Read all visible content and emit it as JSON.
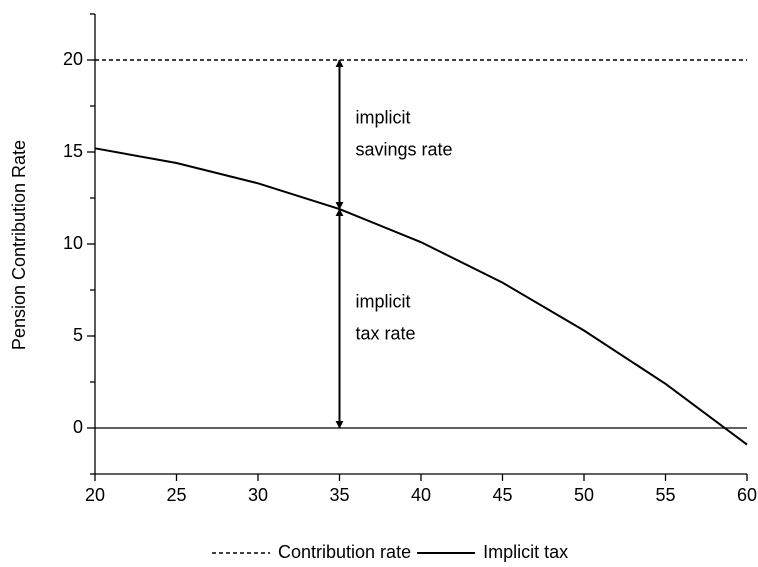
{
  "chart_data": {
    "type": "line",
    "y_label": "Pension Contribution Rate",
    "x": [
      20,
      25,
      30,
      35,
      40,
      45,
      50,
      55,
      60
    ],
    "series": [
      {
        "name": "Contribution rate",
        "color": "#000000",
        "dash": true,
        "values": [
          20,
          20,
          20,
          20,
          20,
          20,
          20,
          20,
          20
        ]
      },
      {
        "name": "Implicit tax",
        "color": "#000000",
        "dash": false,
        "values": [
          15.2,
          14.4,
          13.3,
          11.9,
          10.1,
          7.9,
          5.3,
          2.4,
          -0.9
        ]
      }
    ],
    "xlim": [
      20,
      60
    ],
    "xticks": [
      20,
      25,
      30,
      35,
      40,
      45,
      50,
      55,
      60
    ],
    "ylim": [
      -2.5,
      22.5
    ],
    "yticks": [
      0,
      5,
      10,
      15,
      20
    ],
    "yminorticks": [
      -2.5,
      2.5,
      7.5,
      12.5,
      17.5,
      22.5
    ],
    "annotations": [
      {
        "lines": [
          "implicit",
          "savings rate"
        ],
        "x": 35,
        "from": 20,
        "to": 11.9
      },
      {
        "lines": [
          "implicit",
          "tax rate"
        ],
        "x": 35,
        "from": 11.9,
        "to": 0
      }
    ],
    "legend": "bottom"
  }
}
